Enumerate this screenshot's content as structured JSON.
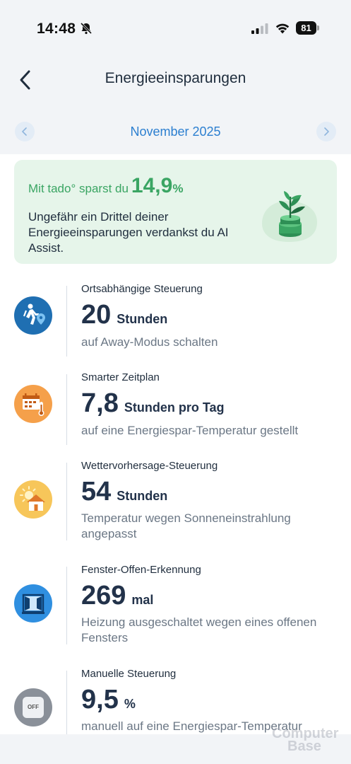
{
  "status_bar": {
    "time": "14:48",
    "battery": "81"
  },
  "header": {
    "title": "Energieeinsparungen",
    "back_icon": "chevron-left-icon"
  },
  "month_nav": {
    "label": "November 2025"
  },
  "promo": {
    "prefix": "Mit tado° sparst du",
    "percent_value": "14,9",
    "percent_sign": "%",
    "body": "Ungefähr ein Drittel deiner Energieeinsparungen verdankst du AI Assist.",
    "icon": "plant-coins-icon"
  },
  "features": [
    {
      "title": "Ortsabhängige Steuerung",
      "value": "20",
      "unit": "Stunden",
      "description": "auf Away-Modus schalten",
      "icon": "walking-person-location-icon",
      "color": "#1f6fb2"
    },
    {
      "title": "Smarter Zeitplan",
      "value": "7,8",
      "unit": "Stunden pro Tag",
      "description": "auf eine Energiespar-Temperatur gestellt",
      "icon": "calendar-thermometer-icon",
      "color": "#f5a04a"
    },
    {
      "title": "Wettervorhersage-Steuerung",
      "value": "54",
      "unit": "Stunden",
      "description": "Temperatur wegen Sonneneinstrahlung angepasst",
      "icon": "sun-house-icon",
      "color": "#f7c65a"
    },
    {
      "title": "Fenster-Offen-Erkennung",
      "value": "269",
      "unit": "mal",
      "description": "Heizung ausgeschaltet wegen eines offenen Fensters",
      "icon": "open-window-icon",
      "color": "#2f8fe0"
    },
    {
      "title": "Manuelle Steuerung",
      "value": "9,5",
      "unit": "%",
      "description": "manuell auf eine Energiespar-Temperatur",
      "icon": "off-switch-icon",
      "icon_text": "OFF",
      "color": "#8a9099"
    }
  ],
  "watermark": {
    "line1": "Computer",
    "line2": "Base"
  }
}
